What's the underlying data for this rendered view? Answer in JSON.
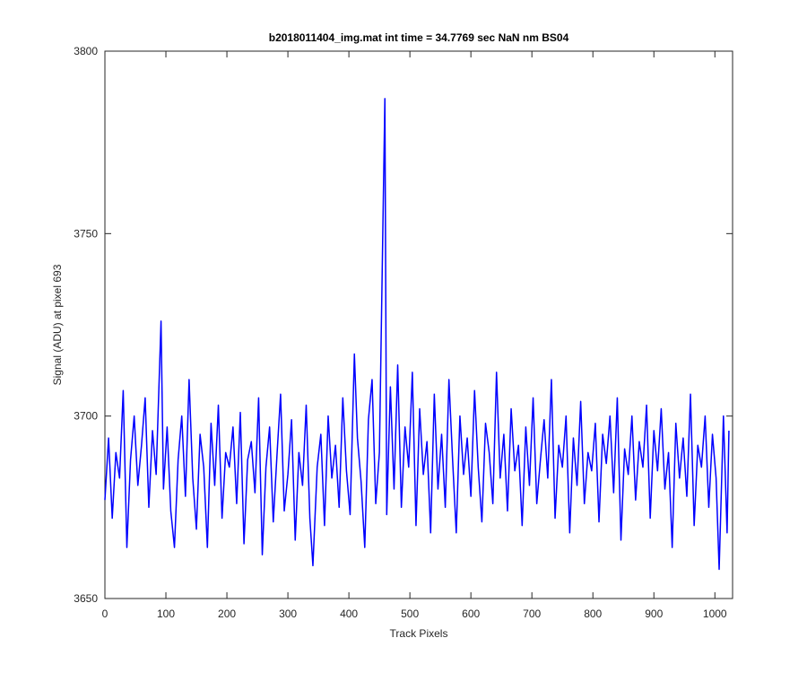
{
  "chart_data": {
    "type": "line",
    "title": "b2018011404_img.mat int time = 34.7769 sec  NaN nm BS04",
    "xlabel": "Track Pixels",
    "ylabel": "Signal (ADU) at pixel 693",
    "xlim": [
      0,
      1029
    ],
    "ylim": [
      3650,
      3800
    ],
    "xticks": [
      0,
      100,
      200,
      300,
      400,
      500,
      600,
      700,
      800,
      900,
      1000
    ],
    "yticks": [
      3650,
      3700,
      3750,
      3800
    ],
    "x": [
      0,
      6,
      12,
      18,
      24,
      30,
      36,
      42,
      48,
      54,
      60,
      66,
      72,
      78,
      84,
      92,
      96,
      102,
      108,
      114,
      120,
      126,
      132,
      138,
      144,
      150,
      156,
      162,
      168,
      174,
      180,
      186,
      192,
      198,
      204,
      210,
      216,
      222,
      228,
      234,
      240,
      246,
      252,
      258,
      264,
      270,
      276,
      282,
      288,
      294,
      300,
      306,
      312,
      318,
      324,
      330,
      336,
      341,
      348,
      354,
      360,
      366,
      372,
      378,
      384,
      390,
      396,
      402,
      409,
      414,
      420,
      426,
      432,
      438,
      444,
      450,
      459,
      462,
      468,
      474,
      480,
      486,
      492,
      498,
      504,
      510,
      516,
      522,
      528,
      534,
      540,
      546,
      552,
      558,
      564,
      570,
      576,
      582,
      588,
      594,
      600,
      606,
      612,
      618,
      624,
      630,
      636,
      642,
      648,
      654,
      660,
      666,
      672,
      678,
      684,
      690,
      696,
      702,
      708,
      714,
      720,
      726,
      732,
      738,
      744,
      750,
      756,
      762,
      768,
      774,
      780,
      786,
      792,
      798,
      804,
      810,
      816,
      822,
      828,
      834,
      840,
      846,
      852,
      858,
      864,
      870,
      876,
      882,
      888,
      894,
      900,
      906,
      912,
      918,
      924,
      930,
      936,
      942,
      948,
      954,
      960,
      966,
      972,
      978,
      984,
      990,
      996,
      1002,
      1007,
      1014,
      1020,
      1023
    ],
    "series": [
      {
        "color": "#0000ff",
        "values": [
          3677,
          3694,
          3672,
          3690,
          3683,
          3707,
          3664,
          3688,
          3700,
          3681,
          3692,
          3705,
          3675,
          3696,
          3684,
          3726,
          3680,
          3697,
          3674,
          3664,
          3688,
          3700,
          3678,
          3710,
          3683,
          3669,
          3695,
          3686,
          3664,
          3698,
          3681,
          3703,
          3672,
          3690,
          3686,
          3697,
          3676,
          3701,
          3665,
          3688,
          3693,
          3679,
          3705,
          3662,
          3686,
          3697,
          3671,
          3689,
          3706,
          3674,
          3684,
          3699,
          3666,
          3690,
          3681,
          3703,
          3672,
          3659,
          3686,
          3695,
          3670,
          3700,
          3683,
          3692,
          3675,
          3705,
          3685,
          3673,
          3717,
          3694,
          3682,
          3664,
          3699,
          3710,
          3676,
          3690,
          3787,
          3673,
          3708,
          3680,
          3714,
          3675,
          3697,
          3686,
          3712,
          3670,
          3702,
          3684,
          3693,
          3668,
          3706,
          3680,
          3695,
          3675,
          3710,
          3688,
          3668,
          3700,
          3684,
          3694,
          3678,
          3707,
          3686,
          3671,
          3698,
          3690,
          3676,
          3712,
          3683,
          3695,
          3674,
          3702,
          3685,
          3692,
          3670,
          3697,
          3681,
          3705,
          3676,
          3688,
          3699,
          3683,
          3710,
          3672,
          3692,
          3686,
          3700,
          3668,
          3694,
          3681,
          3704,
          3676,
          3690,
          3685,
          3698,
          3671,
          3695,
          3687,
          3700,
          3679,
          3705,
          3666,
          3691,
          3684,
          3700,
          3677,
          3693,
          3686,
          3703,
          3672,
          3696,
          3685,
          3702,
          3680,
          3690,
          3664,
          3698,
          3683,
          3694,
          3678,
          3706,
          3670,
          3692,
          3686,
          3700,
          3675,
          3695,
          3683,
          3658,
          3700,
          3668,
          3696
        ]
      }
    ]
  }
}
